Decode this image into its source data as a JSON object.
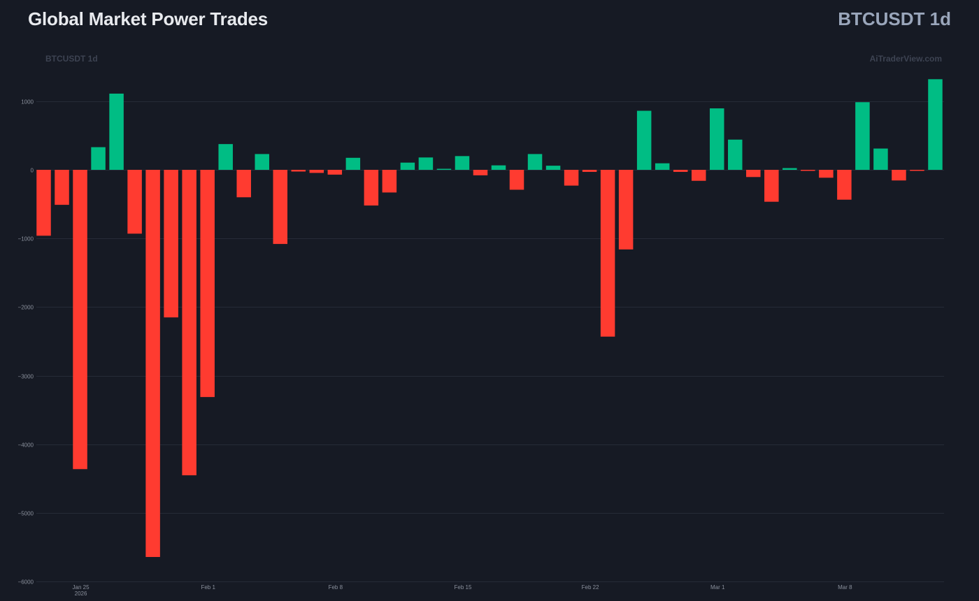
{
  "header": {
    "title": "Global Market Power Trades",
    "symbol": "BTCUSDT 1d"
  },
  "chart_data": {
    "type": "bar",
    "watermark_left": "BTCUSDT 1d",
    "watermark_right": "AiTraderView.com",
    "ylim": [
      -6000,
      1350
    ],
    "yticks": [
      1000,
      0,
      -1000,
      -2000,
      -3000,
      -4000,
      -5000,
      -6000
    ],
    "ytick_labels": [
      "1000",
      "0",
      "−1000",
      "−2000",
      "−3000",
      "−4000",
      "−5000",
      "−6000"
    ],
    "xticks": [
      {
        "index": 2,
        "label": "Jan 25",
        "sublabel": "2026"
      },
      {
        "index": 9,
        "label": "Feb 1",
        "sublabel": ""
      },
      {
        "index": 16,
        "label": "Feb 8",
        "sublabel": ""
      },
      {
        "index": 23,
        "label": "Feb 15",
        "sublabel": ""
      },
      {
        "index": 30,
        "label": "Feb 22",
        "sublabel": ""
      },
      {
        "index": 37,
        "label": "Mar 1",
        "sublabel": ""
      },
      {
        "index": 44,
        "label": "Mar 8",
        "sublabel": ""
      }
    ],
    "grid": true,
    "colors": {
      "positive": "#00bd84",
      "negative": "#ff3b30"
    },
    "values": [
      -960,
      -510,
      -4360,
      330,
      1110,
      -930,
      -5640,
      -2150,
      -4450,
      -3310,
      375,
      -400,
      230,
      -1080,
      -25,
      -45,
      -70,
      175,
      -520,
      -330,
      105,
      180,
      15,
      200,
      -80,
      65,
      -290,
      230,
      60,
      -230,
      -30,
      -2430,
      -1160,
      860,
      95,
      -30,
      -160,
      895,
      440,
      -105,
      -465,
      25,
      -15,
      -115,
      -435,
      985,
      310,
      -155,
      -15,
      1320
    ]
  }
}
